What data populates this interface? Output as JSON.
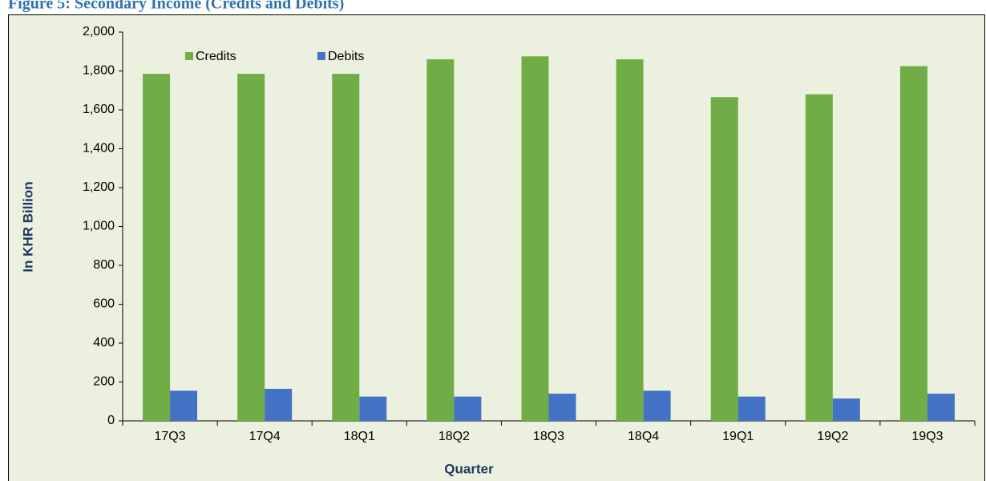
{
  "chart_data": {
    "type": "bar",
    "title": "Figure 5: Secondary Income (Credits and Debits)",
    "x_label": "Quarter",
    "y_label": "In KHR Billion",
    "categories": [
      "17Q3",
      "17Q4",
      "18Q1",
      "18Q2",
      "18Q3",
      "18Q4",
      "19Q1",
      "19Q2",
      "19Q3"
    ],
    "series": [
      {
        "name": "Credits",
        "color": "#70ad47",
        "values": [
          1785,
          1785,
          1785,
          1860,
          1875,
          1860,
          1665,
          1680,
          1825
        ]
      },
      {
        "name": "Debits",
        "color": "#4472c4",
        "values": [
          155,
          165,
          125,
          125,
          140,
          155,
          125,
          115,
          140
        ]
      }
    ],
    "ylim": [
      0,
      2000
    ],
    "yticks": [
      0,
      200,
      400,
      600,
      800,
      {
        "value": 1000,
        "label": "1,000"
      },
      {
        "value": 1200,
        "label": "1,200"
      },
      {
        "value": 1400,
        "label": "1,400"
      },
      {
        "value": 1600,
        "label": "1,600"
      },
      {
        "value": 1800,
        "label": "1,800"
      },
      {
        "value": 2000,
        "label": "2,000"
      }
    ],
    "grid": false,
    "legend": "top-left"
  }
}
